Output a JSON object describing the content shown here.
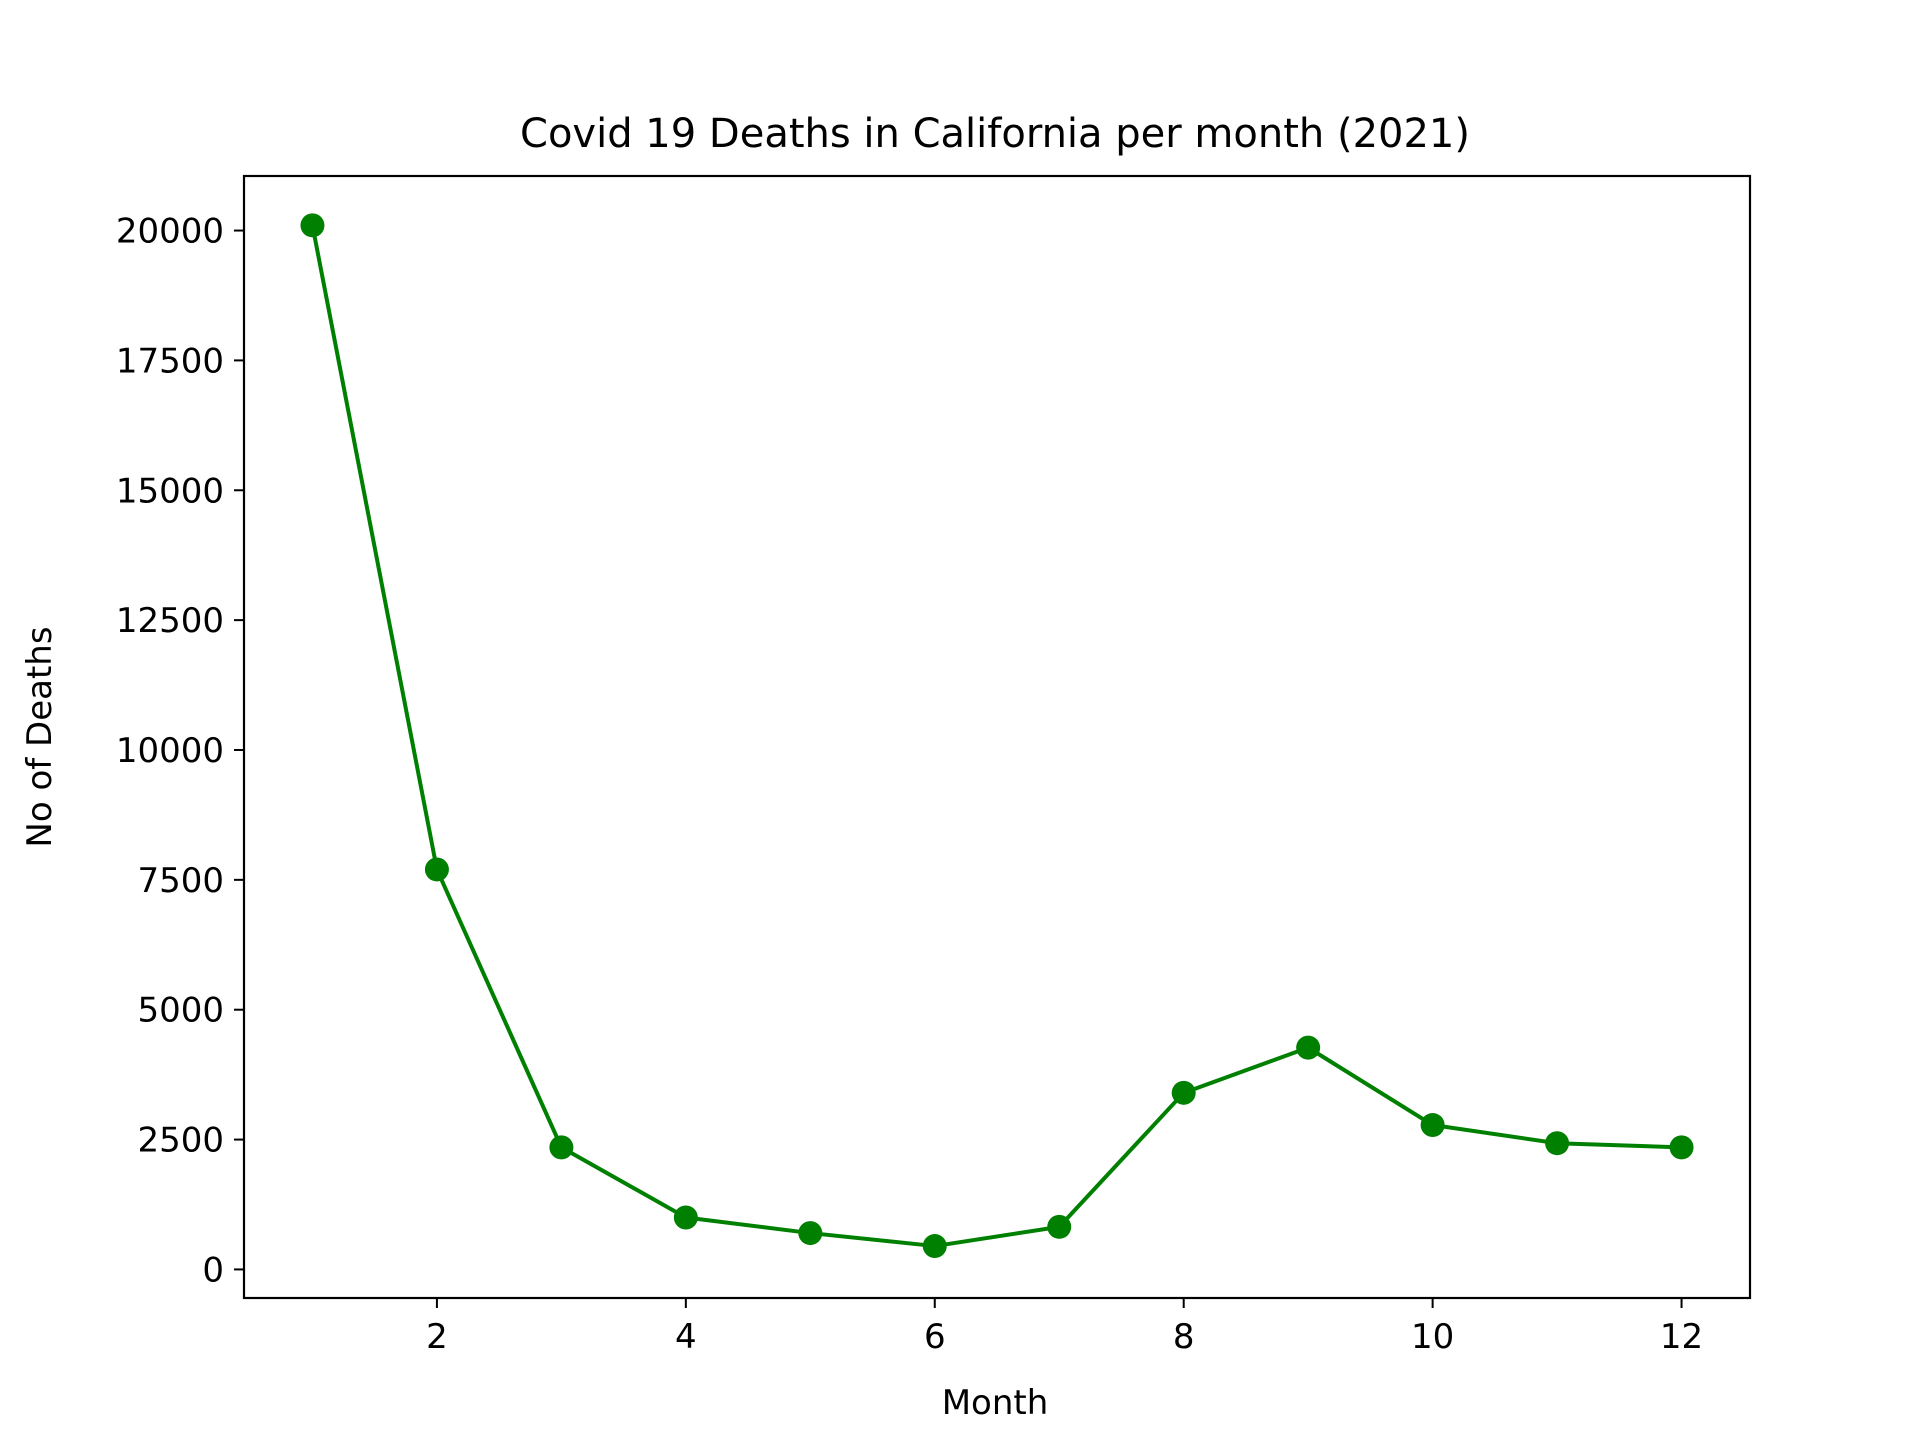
{
  "chart_data": {
    "type": "line",
    "title": "Covid 19 Deaths in California per month (2021)",
    "xlabel": "Month",
    "ylabel": "No of Deaths",
    "xlim": [
      0.45,
      12.55
    ],
    "ylim": [
      -550,
      21050
    ],
    "xticks": [
      2,
      4,
      6,
      8,
      10,
      12
    ],
    "yticks": [
      0,
      2500,
      5000,
      7500,
      10000,
      12500,
      15000,
      17500,
      20000
    ],
    "grid": false,
    "legend": "none",
    "color": "#008000",
    "marker": "circle",
    "series": [
      {
        "x": [
          1,
          2,
          3,
          4,
          5,
          6,
          7,
          8,
          9,
          10,
          11,
          12
        ],
        "values": [
          20100,
          7700,
          2350,
          1000,
          700,
          450,
          820,
          3400,
          4270,
          2780,
          2430,
          2350
        ]
      }
    ]
  }
}
